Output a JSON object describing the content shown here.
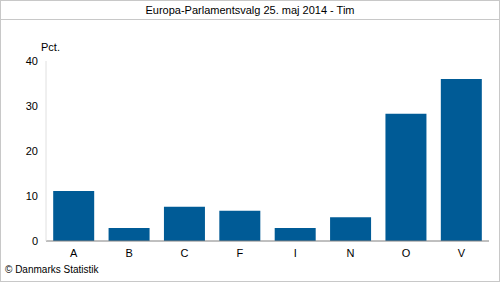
{
  "chart_data": {
    "type": "bar",
    "title": "Europa-Parlamentsvalg 25. maj 2014 - Tim",
    "ylabel": "Pct.",
    "source": "© Danmarks Statistik",
    "categories": [
      "A",
      "B",
      "C",
      "F",
      "I",
      "N",
      "O",
      "V"
    ],
    "values": [
      11.1,
      2.9,
      7.6,
      6.7,
      2.9,
      5.3,
      28.3,
      36.0
    ],
    "color": "#005b96",
    "ylim": [
      0,
      40
    ],
    "yticks": [
      0,
      10,
      20,
      30,
      40
    ],
    "grid": false
  }
}
